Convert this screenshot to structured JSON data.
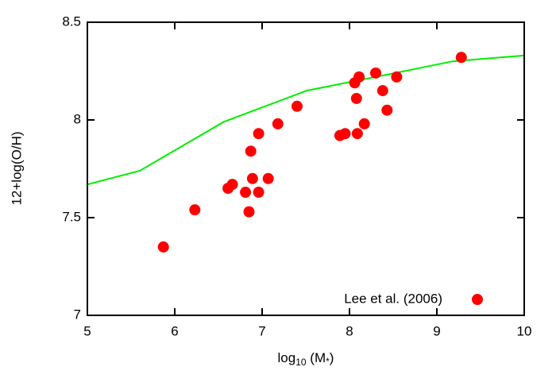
{
  "chart_data": {
    "type": "scatter",
    "xlabel": [
      "log",
      "10",
      " (M",
      "*",
      ")"
    ],
    "ylabel": "12+log(O/H)",
    "xlim": [
      5,
      10
    ],
    "ylim": [
      7,
      8.5
    ],
    "xticks": [
      5,
      6,
      7,
      8,
      9,
      10
    ],
    "yticks": [
      7,
      7.5,
      8,
      8.5
    ],
    "legend": "bottom-right",
    "series": [
      {
        "name": "Lee et al. (2006)",
        "type": "scatter",
        "color": "#ff0000",
        "x": [
          5.87,
          6.23,
          6.61,
          6.66,
          6.81,
          6.85,
          6.87,
          6.89,
          6.96,
          6.96,
          7.07,
          7.18,
          7.4,
          7.89,
          7.95,
          8.06,
          8.08,
          8.09,
          8.11,
          8.17,
          8.3,
          8.38,
          8.43,
          8.54,
          9.28
        ],
        "values": [
          7.35,
          7.54,
          7.65,
          7.67,
          7.63,
          7.53,
          7.84,
          7.7,
          7.63,
          7.93,
          7.7,
          7.98,
          8.07,
          7.92,
          7.93,
          8.19,
          8.11,
          7.93,
          8.22,
          7.98,
          8.24,
          8.15,
          8.05,
          8.22,
          8.32
        ]
      },
      {
        "type": "line",
        "color": "#00ee00",
        "x": [
          5,
          5.6,
          6.56,
          7.51,
          8.52,
          9.18,
          10
        ],
        "values": [
          7.67,
          7.74,
          7.99,
          8.15,
          8.24,
          8.3,
          8.33
        ]
      }
    ]
  }
}
